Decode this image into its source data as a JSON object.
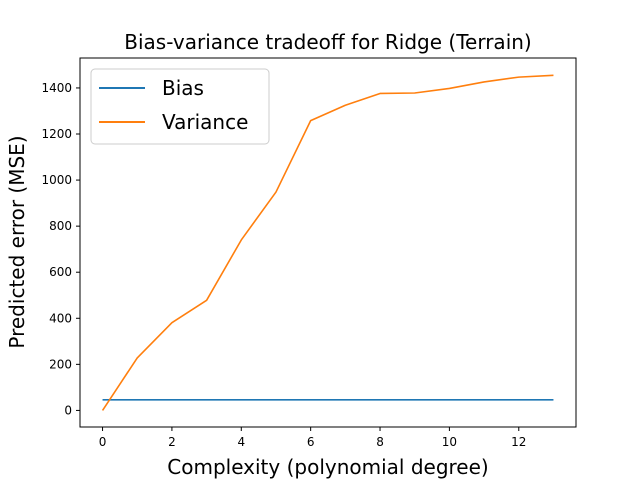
{
  "chart_data": {
    "type": "line",
    "title": "Bias-variance tradeoff for Ridge (Terrain)",
    "xlabel": "Complexity (polynomial degree)",
    "ylabel": "Predicted error (MSE)",
    "xlim": [
      -0.65,
      13.65
    ],
    "ylim": [
      -72,
      1530
    ],
    "x_ticks": [
      0,
      2,
      4,
      6,
      8,
      10,
      12
    ],
    "y_ticks": [
      0,
      200,
      400,
      600,
      800,
      1000,
      1200,
      1400
    ],
    "grid": false,
    "legend_position": "top-left",
    "x": [
      0,
      1,
      2,
      3,
      4,
      5,
      6,
      7,
      8,
      9,
      10,
      11,
      12,
      13
    ],
    "series": [
      {
        "name": "Bias",
        "color": "#1f77b4",
        "values": [
          46,
          46,
          46,
          46,
          46,
          46,
          46,
          46,
          46,
          46,
          46,
          46,
          46,
          46
        ]
      },
      {
        "name": "Variance",
        "color": "#ff7f0e",
        "values": [
          0,
          228,
          381,
          478,
          740,
          948,
          1258,
          1325,
          1376,
          1378,
          1398,
          1426,
          1447,
          1455
        ]
      }
    ]
  }
}
